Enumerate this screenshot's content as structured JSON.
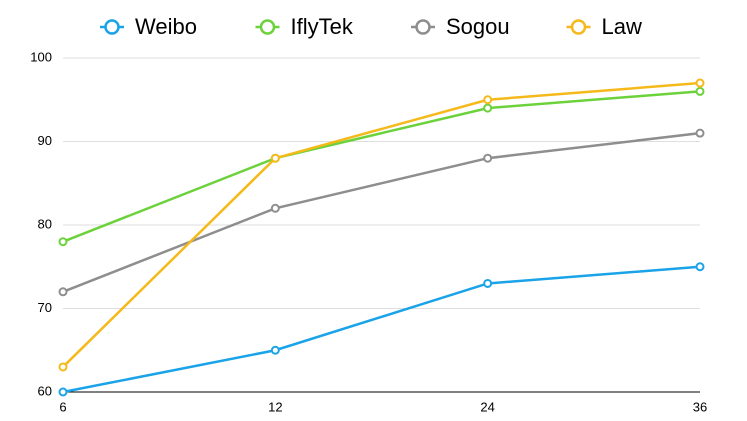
{
  "chart_data": {
    "type": "line",
    "categories": [
      6,
      12,
      24,
      36
    ],
    "series": [
      {
        "name": "Weibo",
        "color": "#1aa3e8",
        "values": [
          60,
          65,
          73,
          75
        ]
      },
      {
        "name": "IflyTek",
        "color": "#6cd23c",
        "values": [
          78,
          88,
          94,
          96
        ]
      },
      {
        "name": "Sogou",
        "color": "#8e8e8e",
        "values": [
          72,
          82,
          88,
          91
        ]
      },
      {
        "name": "Law",
        "color": "#f5b91a",
        "values": [
          63,
          88,
          95,
          97
        ]
      }
    ],
    "ylim": [
      60,
      100
    ],
    "yticks": [
      60,
      70,
      80,
      90,
      100
    ],
    "grid": true,
    "legend": "top"
  }
}
